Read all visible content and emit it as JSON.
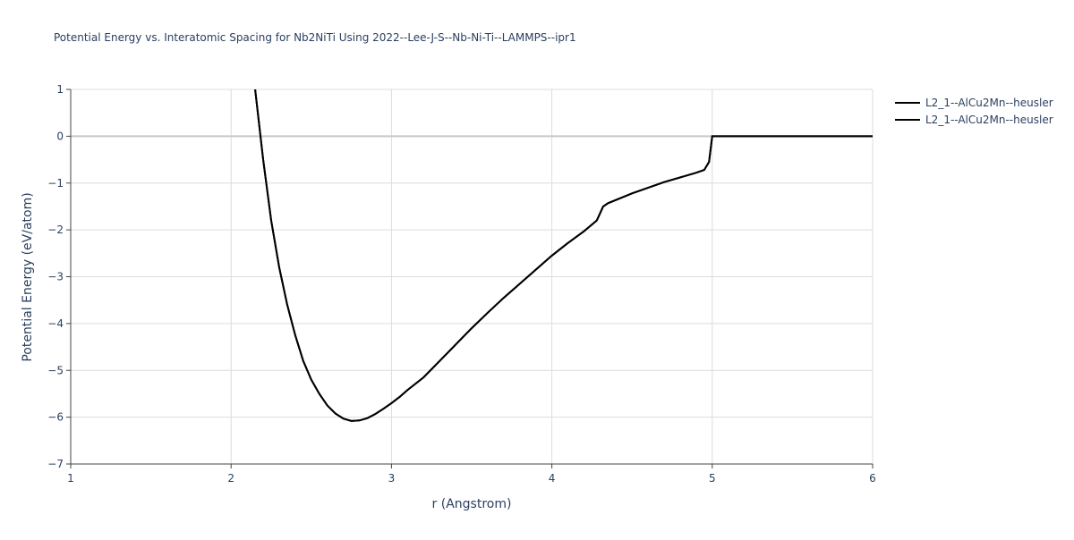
{
  "chart_data": {
    "type": "line",
    "title": "Potential Energy vs. Interatomic Spacing for Nb2NiTi Using 2022--Lee-J-S--Nb-Ni-Ti--LAMMPS--ipr1",
    "x_label": "r (Angstrom)",
    "y_label": "Potential Energy (eV/atom)",
    "xlim": [
      1,
      6
    ],
    "ylim": [
      -7,
      1
    ],
    "xticks": [
      1,
      2,
      3,
      4,
      5,
      6
    ],
    "yticks": [
      {
        "value": -7,
        "label": "−7"
      },
      {
        "value": -6,
        "label": "−6"
      },
      {
        "value": -5,
        "label": "−5"
      },
      {
        "value": -4,
        "label": "−4"
      },
      {
        "value": -3,
        "label": "−3"
      },
      {
        "value": -2,
        "label": "−2"
      },
      {
        "value": -1,
        "label": "−1"
      },
      0,
      1
    ],
    "grid": true,
    "x": [
      2.15,
      2.2,
      2.25,
      2.3,
      2.35,
      2.4,
      2.45,
      2.5,
      2.55,
      2.6,
      2.65,
      2.7,
      2.75,
      2.8,
      2.85,
      2.9,
      2.95,
      3.0,
      3.05,
      3.1,
      3.2,
      3.3,
      3.4,
      3.5,
      3.6,
      3.7,
      3.8,
      3.9,
      4.0,
      4.1,
      4.2,
      4.28,
      4.3,
      4.32,
      4.35,
      4.5,
      4.7,
      4.9,
      4.95,
      4.98,
      5.0,
      5.5,
      6.0
    ],
    "series": [
      {
        "name": "L2_1--AlCu2Mn--heusler",
        "color": "#000000",
        "values": [
          1.0,
          -0.5,
          -1.8,
          -2.8,
          -3.6,
          -4.25,
          -4.8,
          -5.2,
          -5.5,
          -5.75,
          -5.92,
          -6.03,
          -6.08,
          -6.07,
          -6.02,
          -5.93,
          -5.82,
          -5.7,
          -5.57,
          -5.42,
          -5.15,
          -4.8,
          -4.45,
          -4.1,
          -3.77,
          -3.45,
          -3.15,
          -2.85,
          -2.55,
          -2.28,
          -2.03,
          -1.8,
          -1.65,
          -1.5,
          -1.43,
          -1.22,
          -0.98,
          -0.78,
          -0.72,
          -0.55,
          0,
          0,
          0
        ]
      },
      {
        "name": "L2_1--AlCu2Mn--heusler",
        "color": "#000000",
        "values": [
          1.0,
          -0.5,
          -1.8,
          -2.8,
          -3.6,
          -4.25,
          -4.8,
          -5.2,
          -5.5,
          -5.75,
          -5.92,
          -6.03,
          -6.08,
          -6.07,
          -6.02,
          -5.93,
          -5.82,
          -5.7,
          -5.57,
          -5.42,
          -5.15,
          -4.8,
          -4.45,
          -4.1,
          -3.77,
          -3.45,
          -3.15,
          -2.85,
          -2.55,
          -2.28,
          -2.03,
          -1.8,
          -1.65,
          -1.5,
          -1.43,
          -1.22,
          -0.98,
          -0.78,
          -0.72,
          -0.55,
          0,
          0,
          0
        ]
      }
    ]
  }
}
